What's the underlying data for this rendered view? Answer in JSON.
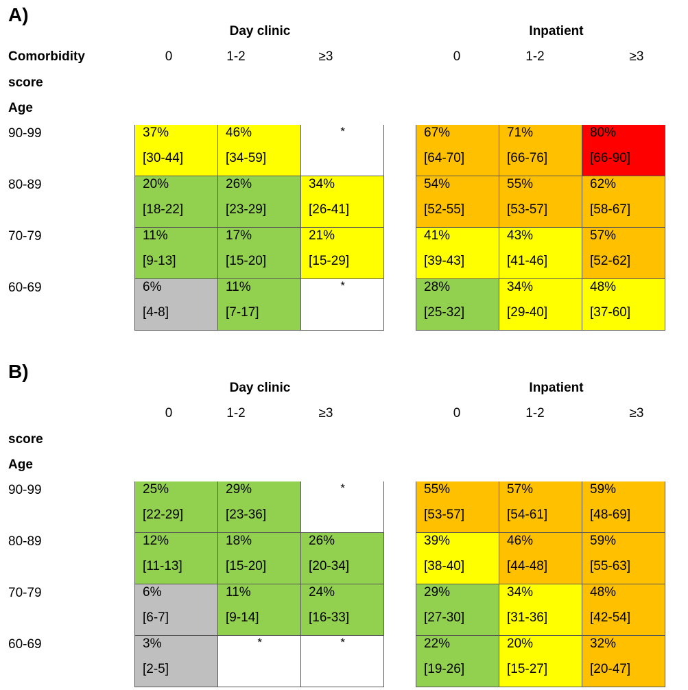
{
  "colors": {
    "grey": "#bfbfbf",
    "green": "#92d050",
    "yellow": "#ffff00",
    "orange": "#ffc000",
    "red": "#ff0000",
    "blank": "#ffffff"
  },
  "chart_data": [
    {
      "type": "heatmap",
      "panel_label": "A)",
      "row_header_lines": [
        "Comorbidity",
        "score",
        "Age"
      ],
      "groups": [
        {
          "title": "Day clinic",
          "columns": [
            "0",
            "1-2",
            "≥3"
          ],
          "rows": [
            {
              "age": "90-99",
              "cells": [
                {
                  "pct": "37%",
                  "ci": "[30-44]",
                  "color": "yellow"
                },
                {
                  "pct": "46%",
                  "ci": "[34-59]",
                  "color": "yellow"
                },
                {
                  "pct": "*",
                  "ci": "",
                  "color": "blank"
                }
              ]
            },
            {
              "age": "80-89",
              "cells": [
                {
                  "pct": "20%",
                  "ci": "[18-22]",
                  "color": "green"
                },
                {
                  "pct": "26%",
                  "ci": "[23-29]",
                  "color": "green"
                },
                {
                  "pct": "34%",
                  "ci": "[26-41]",
                  "color": "yellow"
                }
              ]
            },
            {
              "age": "70-79",
              "cells": [
                {
                  "pct": "11%",
                  "ci": "[9-13]",
                  "color": "green"
                },
                {
                  "pct": "17%",
                  "ci": "[15-20]",
                  "color": "green"
                },
                {
                  "pct": "21%",
                  "ci": "[15-29]",
                  "color": "yellow"
                }
              ]
            },
            {
              "age": "60-69",
              "cells": [
                {
                  "pct": "6%",
                  "ci": "[4-8]",
                  "color": "grey"
                },
                {
                  "pct": "11%",
                  "ci": "[7-17]",
                  "color": "green"
                },
                {
                  "pct": "*",
                  "ci": "",
                  "color": "blank"
                }
              ]
            }
          ]
        },
        {
          "title": "Inpatient",
          "columns": [
            "0",
            "1-2",
            "≥3"
          ],
          "rows": [
            {
              "age": "90-99",
              "cells": [
                {
                  "pct": "67%",
                  "ci": "[64-70]",
                  "color": "orange"
                },
                {
                  "pct": "71%",
                  "ci": "[66-76]",
                  "color": "orange"
                },
                {
                  "pct": "80%",
                  "ci": "[66-90]",
                  "color": "red"
                }
              ]
            },
            {
              "age": "80-89",
              "cells": [
                {
                  "pct": "54%",
                  "ci": "[52-55]",
                  "color": "orange"
                },
                {
                  "pct": "55%",
                  "ci": "[53-57]",
                  "color": "orange"
                },
                {
                  "pct": "62%",
                  "ci": "[58-67]",
                  "color": "orange"
                }
              ]
            },
            {
              "age": "70-79",
              "cells": [
                {
                  "pct": "41%",
                  "ci": "[39-43]",
                  "color": "yellow"
                },
                {
                  "pct": "43%",
                  "ci": "[41-46]",
                  "color": "yellow"
                },
                {
                  "pct": "57%",
                  "ci": "[52-62]",
                  "color": "orange"
                }
              ]
            },
            {
              "age": "60-69",
              "cells": [
                {
                  "pct": "28%",
                  "ci": "[25-32]",
                  "color": "green"
                },
                {
                  "pct": "34%",
                  "ci": "[29-40]",
                  "color": "yellow"
                },
                {
                  "pct": "48%",
                  "ci": "[37-60]",
                  "color": "yellow"
                }
              ]
            }
          ]
        }
      ]
    },
    {
      "type": "heatmap",
      "panel_label": "B)",
      "row_header_lines": [
        "",
        "score",
        "Age"
      ],
      "groups": [
        {
          "title": "Day clinic",
          "columns": [
            "0",
            "1-2",
            "≥3"
          ],
          "rows": [
            {
              "age": "90-99",
              "cells": [
                {
                  "pct": "25%",
                  "ci": "[22-29]",
                  "color": "green"
                },
                {
                  "pct": "29%",
                  "ci": "[23-36]",
                  "color": "green"
                },
                {
                  "pct": "*",
                  "ci": "",
                  "color": "blank"
                }
              ]
            },
            {
              "age": "80-89",
              "cells": [
                {
                  "pct": "12%",
                  "ci": "[11-13]",
                  "color": "green"
                },
                {
                  "pct": "18%",
                  "ci": "[15-20]",
                  "color": "green"
                },
                {
                  "pct": "26%",
                  "ci": "[20-34]",
                  "color": "green"
                }
              ]
            },
            {
              "age": "70-79",
              "cells": [
                {
                  "pct": "6%",
                  "ci": "[6-7]",
                  "color": "grey"
                },
                {
                  "pct": "11%",
                  "ci": "[9-14]",
                  "color": "green"
                },
                {
                  "pct": "24%",
                  "ci": "[16-33]",
                  "color": "green"
                }
              ]
            },
            {
              "age": "60-69",
              "cells": [
                {
                  "pct": "3%",
                  "ci": "[2-5]",
                  "color": "grey"
                },
                {
                  "pct": "*",
                  "ci": "",
                  "color": "blank"
                },
                {
                  "pct": "*",
                  "ci": "",
                  "color": "blank"
                }
              ]
            }
          ]
        },
        {
          "title": "Inpatient",
          "columns": [
            "0",
            "1-2",
            "≥3"
          ],
          "rows": [
            {
              "age": "90-99",
              "cells": [
                {
                  "pct": "55%",
                  "ci": "[53-57]",
                  "color": "orange"
                },
                {
                  "pct": "57%",
                  "ci": "[54-61]",
                  "color": "orange"
                },
                {
                  "pct": "59%",
                  "ci": "[48-69]",
                  "color": "orange"
                }
              ]
            },
            {
              "age": "80-89",
              "cells": [
                {
                  "pct": "39%",
                  "ci": "[38-40]",
                  "color": "yellow"
                },
                {
                  "pct": "46%",
                  "ci": "[44-48]",
                  "color": "orange"
                },
                {
                  "pct": "59%",
                  "ci": "[55-63]",
                  "color": "orange"
                }
              ]
            },
            {
              "age": "70-79",
              "cells": [
                {
                  "pct": "29%",
                  "ci": "[27-30]",
                  "color": "green"
                },
                {
                  "pct": "34%",
                  "ci": "[31-36]",
                  "color": "yellow"
                },
                {
                  "pct": "48%",
                  "ci": "[42-54]",
                  "color": "orange"
                }
              ]
            },
            {
              "age": "60-69",
              "cells": [
                {
                  "pct": "22%",
                  "ci": "[19-26]",
                  "color": "green"
                },
                {
                  "pct": "20%",
                  "ci": "[15-27]",
                  "color": "yellow"
                },
                {
                  "pct": "32%",
                  "ci": "[20-47]",
                  "color": "orange"
                }
              ]
            }
          ]
        }
      ]
    }
  ]
}
